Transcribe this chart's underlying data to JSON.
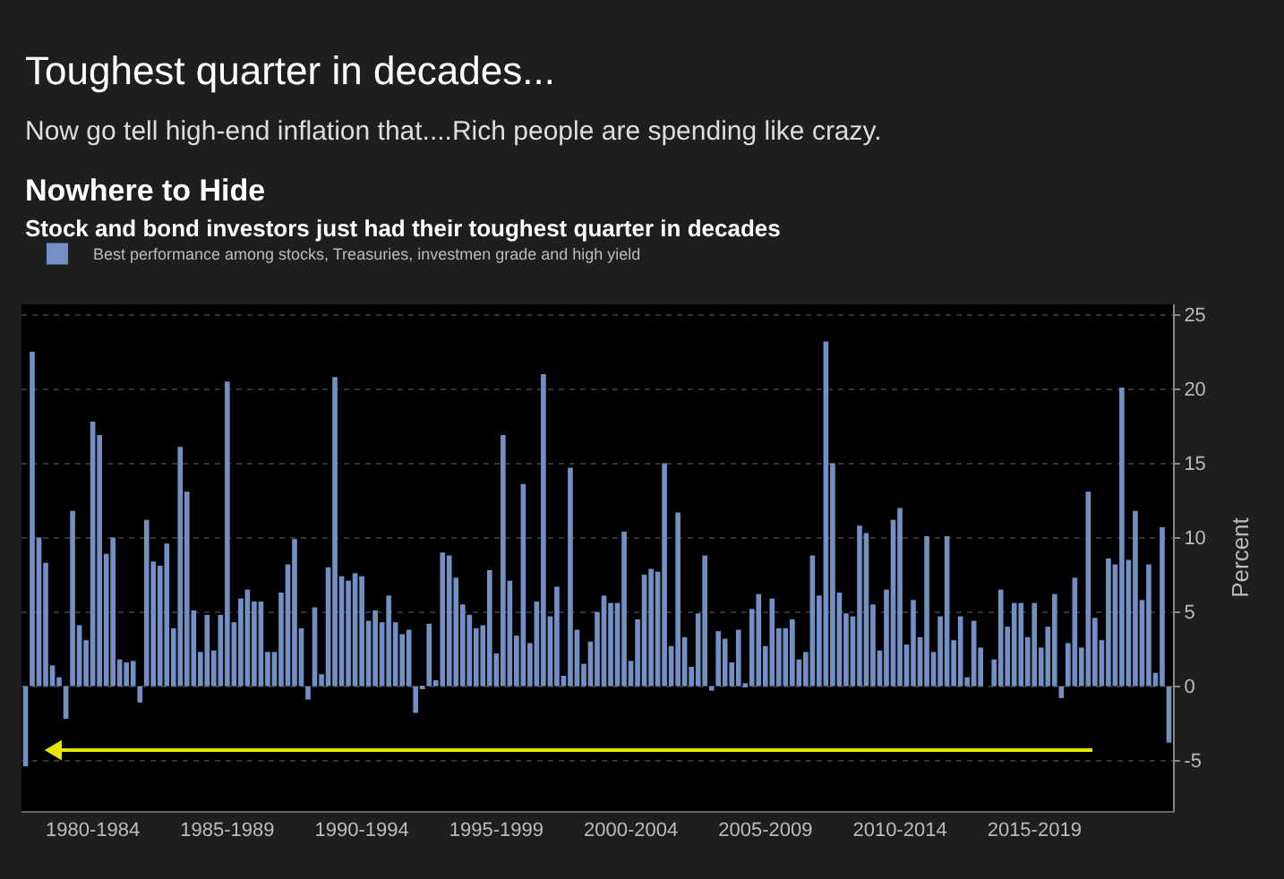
{
  "chart_data": {
    "type": "bar",
    "title": "Nowhere to Hide",
    "subtitle": "Stock and bond investors just had their toughest quarter in decades",
    "ylabel": "Percent",
    "annotations": [
      "Toughest quarter in decades...",
      "Now go tell high-end inflation that....Rich people are spending like crazy."
    ],
    "categories": [
      null,
      null,
      null,
      null,
      null,
      null,
      null,
      null,
      null,
      null,
      "1980-1984",
      null,
      null,
      null,
      null,
      null,
      null,
      null,
      null,
      null,
      null,
      null,
      null,
      null,
      null,
      null,
      null,
      null,
      null,
      null,
      "1985-1989",
      null,
      null,
      null,
      null,
      null,
      null,
      null,
      null,
      null,
      null,
      null,
      null,
      null,
      null,
      null,
      null,
      null,
      null,
      null,
      "1990-1994",
      null,
      null,
      null,
      null,
      null,
      null,
      null,
      null,
      null,
      null,
      null,
      null,
      null,
      null,
      null,
      null,
      null,
      null,
      null,
      "1995-1999",
      null,
      null,
      null,
      null,
      null,
      null,
      null,
      null,
      null,
      null,
      null,
      null,
      null,
      null,
      null,
      null,
      null,
      null,
      null,
      "2000-2004",
      null,
      null,
      null,
      null,
      null,
      null,
      null,
      null,
      null,
      null,
      null,
      null,
      null,
      null,
      null,
      null,
      null,
      null,
      null,
      "2005-2009",
      null,
      null,
      null,
      null,
      null,
      null,
      null,
      null,
      null,
      null,
      null,
      null,
      null,
      null,
      null,
      null,
      null,
      null,
      null,
      "2010-2014",
      null,
      null,
      null,
      null,
      null,
      null,
      null,
      null,
      null,
      null,
      null,
      null,
      null,
      null,
      null,
      null,
      null,
      null,
      null,
      "2015-2019",
      null,
      null,
      null,
      null,
      null,
      null,
      null,
      null,
      null,
      null,
      null,
      null,
      null,
      null,
      null,
      null,
      null,
      null,
      null,
      null
    ],
    "series": [
      {
        "name": "Best performance among stocks, Treasuries, investmen grade and high yield",
        "color": "#7390c4",
        "values": [
          -5.4,
          22.5,
          10,
          8.3,
          1.4,
          0.6,
          -2.2,
          11.8,
          4.1,
          3.1,
          17.8,
          16.9,
          8.9,
          10,
          1.8,
          1.6,
          1.7,
          -1.1,
          11.2,
          8.4,
          8.1,
          9.6,
          3.9,
          16.1,
          13.1,
          5.1,
          2.3,
          4.8,
          2.4,
          4.8,
          20.5,
          4.3,
          5.9,
          6.5,
          5.7,
          5.7,
          2.3,
          2.3,
          6.3,
          8.2,
          9.9,
          3.9,
          -0.9,
          5.3,
          0.8,
          8,
          20.8,
          7.4,
          7.1,
          7.6,
          7.4,
          4.4,
          5.1,
          4.3,
          6.1,
          4.3,
          3.5,
          3.8,
          -1.8,
          -0.2,
          4.2,
          0.4,
          9,
          8.8,
          7.3,
          5.5,
          4.8,
          3.9,
          4.1,
          7.8,
          2.2,
          16.9,
          7.1,
          3.4,
          13.6,
          2.9,
          5.7,
          21,
          4.7,
          6.7,
          0.7,
          14.7,
          3.8,
          1.5,
          3,
          5,
          6.1,
          5.6,
          5.6,
          10.4,
          1.7,
          4.5,
          7.5,
          7.9,
          7.7,
          15,
          2.7,
          11.7,
          3.3,
          1.3,
          4.9,
          8.8,
          -0.3,
          3.7,
          3.2,
          1.6,
          3.8,
          0.2,
          5.2,
          6.2,
          2.7,
          5.9,
          3.9,
          3.9,
          4.5,
          1.8,
          2.3,
          8.8,
          6.1,
          23.2,
          15,
          6.3,
          4.9,
          4.7,
          10.8,
          10.3,
          5.5,
          2.4,
          6.5,
          11.2,
          12,
          2.8,
          5.8,
          3.3,
          10.1,
          2.3,
          4.7,
          10.1,
          3.1,
          4.7,
          0.6,
          4.4,
          2.6,
          0,
          1.8,
          6.5,
          4,
          5.6,
          5.6,
          3.3,
          5.6,
          2.6,
          4,
          6.2,
          -0.8,
          2.9,
          7.3,
          2.6,
          13.1,
          4.6,
          3.1,
          8.6,
          8.2,
          20.1,
          8.5,
          11.8,
          5.8,
          8.2,
          0.9,
          10.7,
          -3.8
        ]
      }
    ],
    "ylim": [
      -8.4,
      25.7
    ],
    "yticks": [
      -5,
      0,
      5,
      10,
      15,
      20,
      25
    ],
    "grid": "y",
    "legend": "top left"
  }
}
